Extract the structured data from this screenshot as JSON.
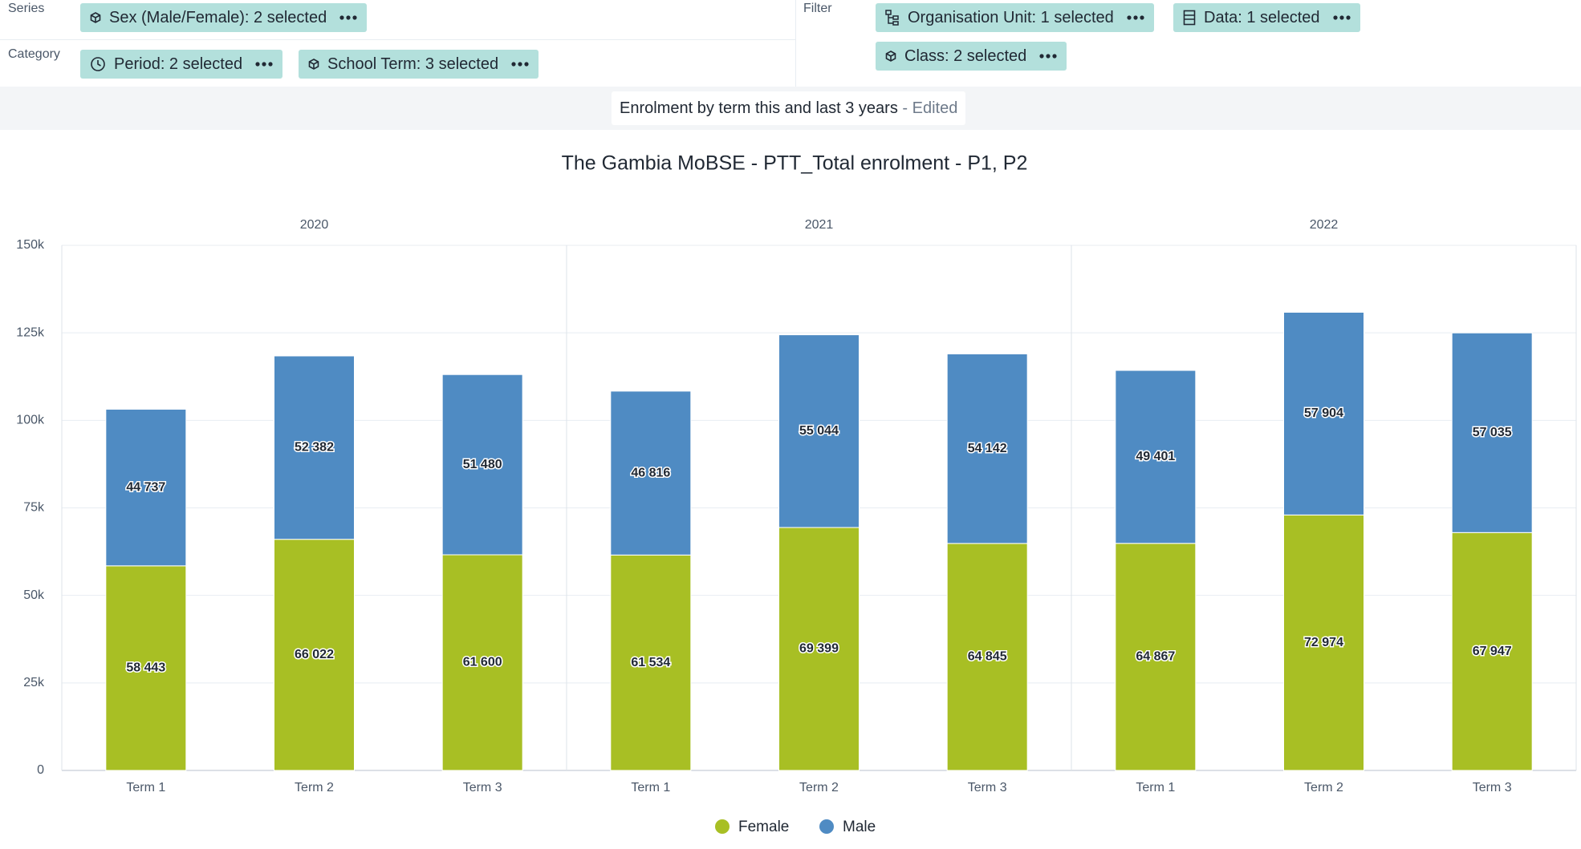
{
  "layout": {
    "series_label": "Series",
    "category_label": "Category",
    "filter_label": "Filter",
    "series_chips": [
      "Sex (Male/Female): 2 selected"
    ],
    "category_chips": [
      "Period: 2 selected",
      "School Term: 3 selected"
    ],
    "filter_chips": [
      "Organisation Unit: 1 selected",
      "Data: 1 selected",
      "Class: 2 selected"
    ],
    "visualization_name": "Enrolment by term this and last 3 years",
    "edited_tag": "- Edited"
  },
  "chart_data": {
    "type": "bar",
    "stacked": true,
    "title": "The Gambia MoBSE - PTT_Total enrolment - P1, P2",
    "category_groups": [
      "2020",
      "2021",
      "2022"
    ],
    "categories": [
      "Term 1",
      "Term 2",
      "Term 3",
      "Term 1",
      "Term 2",
      "Term 3",
      "Term 1",
      "Term 2",
      "Term 3"
    ],
    "series": [
      {
        "name": "Female",
        "color": "#a8bf24",
        "values": [
          58443,
          66022,
          61600,
          61534,
          69399,
          64845,
          64867,
          72974,
          67947
        ],
        "value_labels": [
          "58 443",
          "66 022",
          "61 600",
          "61 534",
          "69 399",
          "64 845",
          "64 867",
          "72 974",
          "67 947"
        ]
      },
      {
        "name": "Male",
        "color": "#4f8bc3",
        "values": [
          44737,
          52382,
          51480,
          46816,
          55044,
          54142,
          49401,
          57904,
          57035
        ],
        "value_labels": [
          "44 737",
          "52 382",
          "51 480",
          "46 816",
          "55 044",
          "54 142",
          "49 401",
          "57 904",
          "57 035"
        ]
      }
    ],
    "ylim": [
      0,
      150000
    ],
    "yticks": [
      0,
      {
        "value": 25000,
        "label": "25k"
      },
      {
        "value": 50000,
        "label": "50k"
      },
      {
        "value": 75000,
        "label": "75k"
      },
      {
        "value": 100000,
        "label": "100k"
      },
      {
        "value": 125000,
        "label": "125k"
      },
      {
        "value": 150000,
        "label": "150k"
      }
    ],
    "grid": true,
    "legend": "bottom"
  }
}
